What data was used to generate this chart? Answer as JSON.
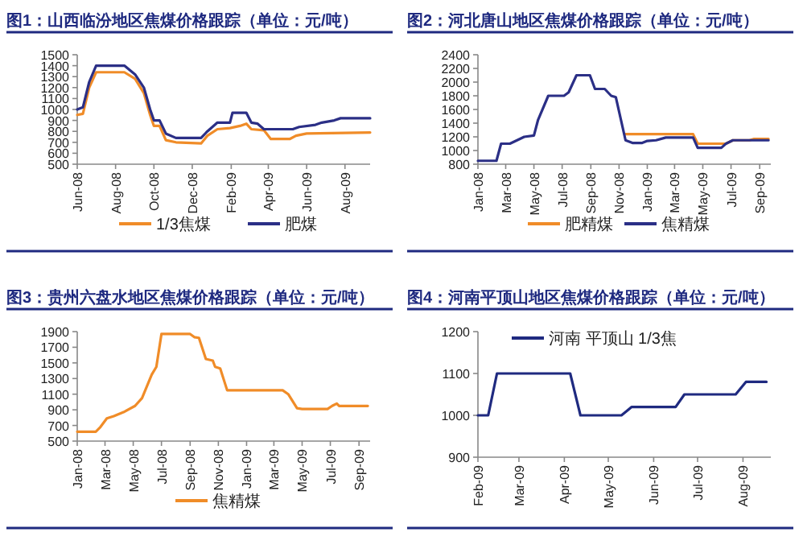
{
  "chart_data": [
    {
      "type": "line",
      "title": "图1：山西临汾地区焦煤价格跟踪（单位：元/吨）",
      "xlim": [
        "2008-06-01",
        "2009-09-10"
      ],
      "xticks": [
        {
          "value": "2008-06",
          "label": "Jun-08"
        },
        {
          "value": "2008-08",
          "label": "Aug-08"
        },
        {
          "value": "2008-10",
          "label": "Oct-08"
        },
        {
          "value": "2008-12",
          "label": "Dec-08"
        },
        {
          "value": "2009-02",
          "label": "Feb-09"
        },
        {
          "value": "2009-04",
          "label": "Apr-09"
        },
        {
          "value": "2009-06",
          "label": "Jun-09"
        },
        {
          "value": "2009-08",
          "label": "Aug-09"
        }
      ],
      "ylim": [
        500,
        1500
      ],
      "yticks": [
        500,
        600,
        700,
        800,
        900,
        1000,
        1100,
        1200,
        1300,
        1400,
        1500
      ],
      "legend": "bottom",
      "grid": false,
      "series": [
        {
          "name": "1/3焦煤",
          "color": "#f08c28",
          "x": [
            "2008-06-01",
            "2008-06-10",
            "2008-06-20",
            "2008-07-01",
            "2008-08-15",
            "2008-09-01",
            "2008-09-15",
            "2008-09-25",
            "2008-10-01",
            "2008-10-10",
            "2008-10-20",
            "2008-11-05",
            "2008-12-15",
            "2008-12-25",
            "2009-01-10",
            "2009-01-30",
            "2009-02-15",
            "2009-02-25",
            "2009-03-05",
            "2009-03-25",
            "2009-04-05",
            "2009-05-05",
            "2009-05-15",
            "2009-06-01",
            "2009-09-10"
          ],
          "values": [
            950,
            960,
            1200,
            1340,
            1340,
            1280,
            1150,
            950,
            850,
            850,
            720,
            700,
            690,
            760,
            820,
            830,
            850,
            870,
            820,
            810,
            730,
            730,
            760,
            780,
            790
          ]
        },
        {
          "name": "肥煤",
          "color": "#2b2f86",
          "x": [
            "2008-06-01",
            "2008-06-10",
            "2008-06-20",
            "2008-07-01",
            "2008-08-15",
            "2008-09-01",
            "2008-09-15",
            "2008-09-25",
            "2008-10-01",
            "2008-10-10",
            "2008-10-20",
            "2008-11-05",
            "2008-12-15",
            "2008-12-25",
            "2009-01-10",
            "2009-01-30",
            "2009-02-03",
            "2009-02-25",
            "2009-03-05",
            "2009-03-15",
            "2009-03-25",
            "2009-05-10",
            "2009-05-20",
            "2009-06-15",
            "2009-06-25",
            "2009-07-15",
            "2009-07-25",
            "2009-09-10"
          ],
          "values": [
            1000,
            1020,
            1250,
            1400,
            1400,
            1320,
            1200,
            1000,
            900,
            900,
            780,
            740,
            740,
            800,
            880,
            880,
            970,
            970,
            880,
            870,
            820,
            820,
            840,
            860,
            880,
            900,
            920,
            920
          ]
        }
      ]
    },
    {
      "type": "line",
      "title": "图2：河北唐山地区焦煤价格跟踪（单位：元/吨）",
      "xlim": [
        "2008-01-01",
        "2009-09-25"
      ],
      "xticks": [
        {
          "value": "2008-01",
          "label": "Jan-08"
        },
        {
          "value": "2008-03",
          "label": "Mar-08"
        },
        {
          "value": "2008-05",
          "label": "May-08"
        },
        {
          "value": "2008-07",
          "label": "Jul-08"
        },
        {
          "value": "2008-09",
          "label": "Sep-08"
        },
        {
          "value": "2008-11",
          "label": "Nov-08"
        },
        {
          "value": "2009-01",
          "label": "Jan-09"
        },
        {
          "value": "2009-03",
          "label": "Mar-09"
        },
        {
          "value": "2009-05",
          "label": "May-09"
        },
        {
          "value": "2009-07",
          "label": "Jul-09"
        },
        {
          "value": "2009-09",
          "label": "Sep-09"
        }
      ],
      "ylim": [
        800,
        2400
      ],
      "yticks": [
        800,
        1000,
        1200,
        1400,
        1600,
        1800,
        2000,
        2200,
        2400
      ],
      "legend": "bottom",
      "grid": false,
      "series": [
        {
          "name": "肥精煤",
          "color": "#f08c28",
          "x": [
            "2008-11-15",
            "2009-04-10",
            "2009-04-20",
            "2009-06-20",
            "2009-07-05",
            "2009-08-10",
            "2009-08-20",
            "2009-09-20"
          ],
          "values": [
            1240,
            1240,
            1100,
            1100,
            1150,
            1150,
            1170,
            1170
          ]
        },
        {
          "name": "焦精煤",
          "color": "#2b2f86",
          "x": [
            "2008-01-01",
            "2008-02-10",
            "2008-02-20",
            "2008-03-10",
            "2008-04-01",
            "2008-04-10",
            "2008-05-01",
            "2008-05-10",
            "2008-06-01",
            "2008-07-05",
            "2008-07-15",
            "2008-08-01",
            "2008-08-30",
            "2008-09-10",
            "2008-10-01",
            "2008-10-15",
            "2008-10-25",
            "2008-11-15",
            "2008-12-01",
            "2008-12-20",
            "2009-01-01",
            "2009-01-20",
            "2009-02-10",
            "2009-04-10",
            "2009-04-20",
            "2009-06-10",
            "2009-06-20",
            "2009-07-05",
            "2009-09-20"
          ],
          "values": [
            850,
            850,
            1100,
            1100,
            1170,
            1200,
            1220,
            1450,
            1800,
            1800,
            1850,
            2100,
            2100,
            1900,
            1900,
            1800,
            1780,
            1150,
            1110,
            1110,
            1140,
            1150,
            1190,
            1190,
            1040,
            1040,
            1100,
            1150,
            1150
          ]
        }
      ]
    },
    {
      "type": "line",
      "title": "图3：贵州六盘水地区焦煤价格跟踪（单位：元/吨）",
      "xlim": [
        "2008-01-01",
        "2009-09-25"
      ],
      "xticks": [
        {
          "value": "2008-01",
          "label": "Jan-08"
        },
        {
          "value": "2008-03",
          "label": "Mar-08"
        },
        {
          "value": "2008-05",
          "label": "May-08"
        },
        {
          "value": "2008-07",
          "label": "Jul-08"
        },
        {
          "value": "2008-09",
          "label": "Sep-08"
        },
        {
          "value": "2008-11",
          "label": "Nov-08"
        },
        {
          "value": "2009-01",
          "label": "Jan-09"
        },
        {
          "value": "2009-03",
          "label": "Mar-09"
        },
        {
          "value": "2009-05",
          "label": "May-09"
        },
        {
          "value": "2009-07",
          "label": "Jul-09"
        },
        {
          "value": "2009-09",
          "label": "Sep-09"
        }
      ],
      "ylim": [
        500,
        1900
      ],
      "yticks": [
        500,
        700,
        900,
        1100,
        1300,
        1500,
        1700,
        1900
      ],
      "legend": "bottom",
      "grid": false,
      "series": [
        {
          "name": "焦精煤",
          "color": "#f08c28",
          "x": [
            "2008-01-01",
            "2008-02-10",
            "2008-02-20",
            "2008-03-05",
            "2008-03-20",
            "2008-04-10",
            "2008-05-05",
            "2008-05-20",
            "2008-06-10",
            "2008-06-20",
            "2008-07-01",
            "2008-09-01",
            "2008-09-10",
            "2008-09-20",
            "2008-10-05",
            "2008-10-20",
            "2008-10-25",
            "2008-11-05",
            "2008-11-20",
            "2009-03-20",
            "2009-04-01",
            "2009-04-20",
            "2009-05-01",
            "2009-06-25",
            "2009-07-05",
            "2009-07-15",
            "2009-07-20",
            "2009-09-20"
          ],
          "values": [
            620,
            620,
            680,
            790,
            820,
            870,
            950,
            1050,
            1350,
            1450,
            1870,
            1870,
            1830,
            1820,
            1550,
            1530,
            1450,
            1430,
            1150,
            1150,
            1100,
            920,
            910,
            910,
            950,
            980,
            950,
            950
          ]
        }
      ]
    },
    {
      "type": "line",
      "title": "图4：河南平顶山地区焦煤价格跟踪（单位：元/吨）",
      "xlim": [
        "2009-02-01",
        "2009-08-20"
      ],
      "xticks": [
        {
          "value": "2009-02",
          "label": "Feb-09"
        },
        {
          "value": "2009-03",
          "label": "Mar-09"
        },
        {
          "value": "2009-04",
          "label": "Apr-09"
        },
        {
          "value": "2009-05",
          "label": "May-09"
        },
        {
          "value": "2009-06",
          "label": "Jun-09"
        },
        {
          "value": "2009-07",
          "label": "Jul-09"
        },
        {
          "value": "2009-08",
          "label": "Aug-09"
        }
      ],
      "ylim": [
        900,
        1200
      ],
      "yticks": [
        900,
        1000,
        1100,
        1200
      ],
      "legend": "top",
      "grid": false,
      "series": [
        {
          "name": "河南 平顶山 1/3焦",
          "color": "#1f2a80",
          "x": [
            "2009-02-01",
            "2009-02-08",
            "2009-02-14",
            "2009-04-05",
            "2009-04-12",
            "2009-05-10",
            "2009-05-17",
            "2009-06-16",
            "2009-06-22",
            "2009-07-27",
            "2009-08-03",
            "2009-08-17"
          ],
          "values": [
            1000,
            1000,
            1100,
            1100,
            1000,
            1000,
            1020,
            1020,
            1050,
            1050,
            1080,
            1080
          ]
        }
      ]
    }
  ]
}
